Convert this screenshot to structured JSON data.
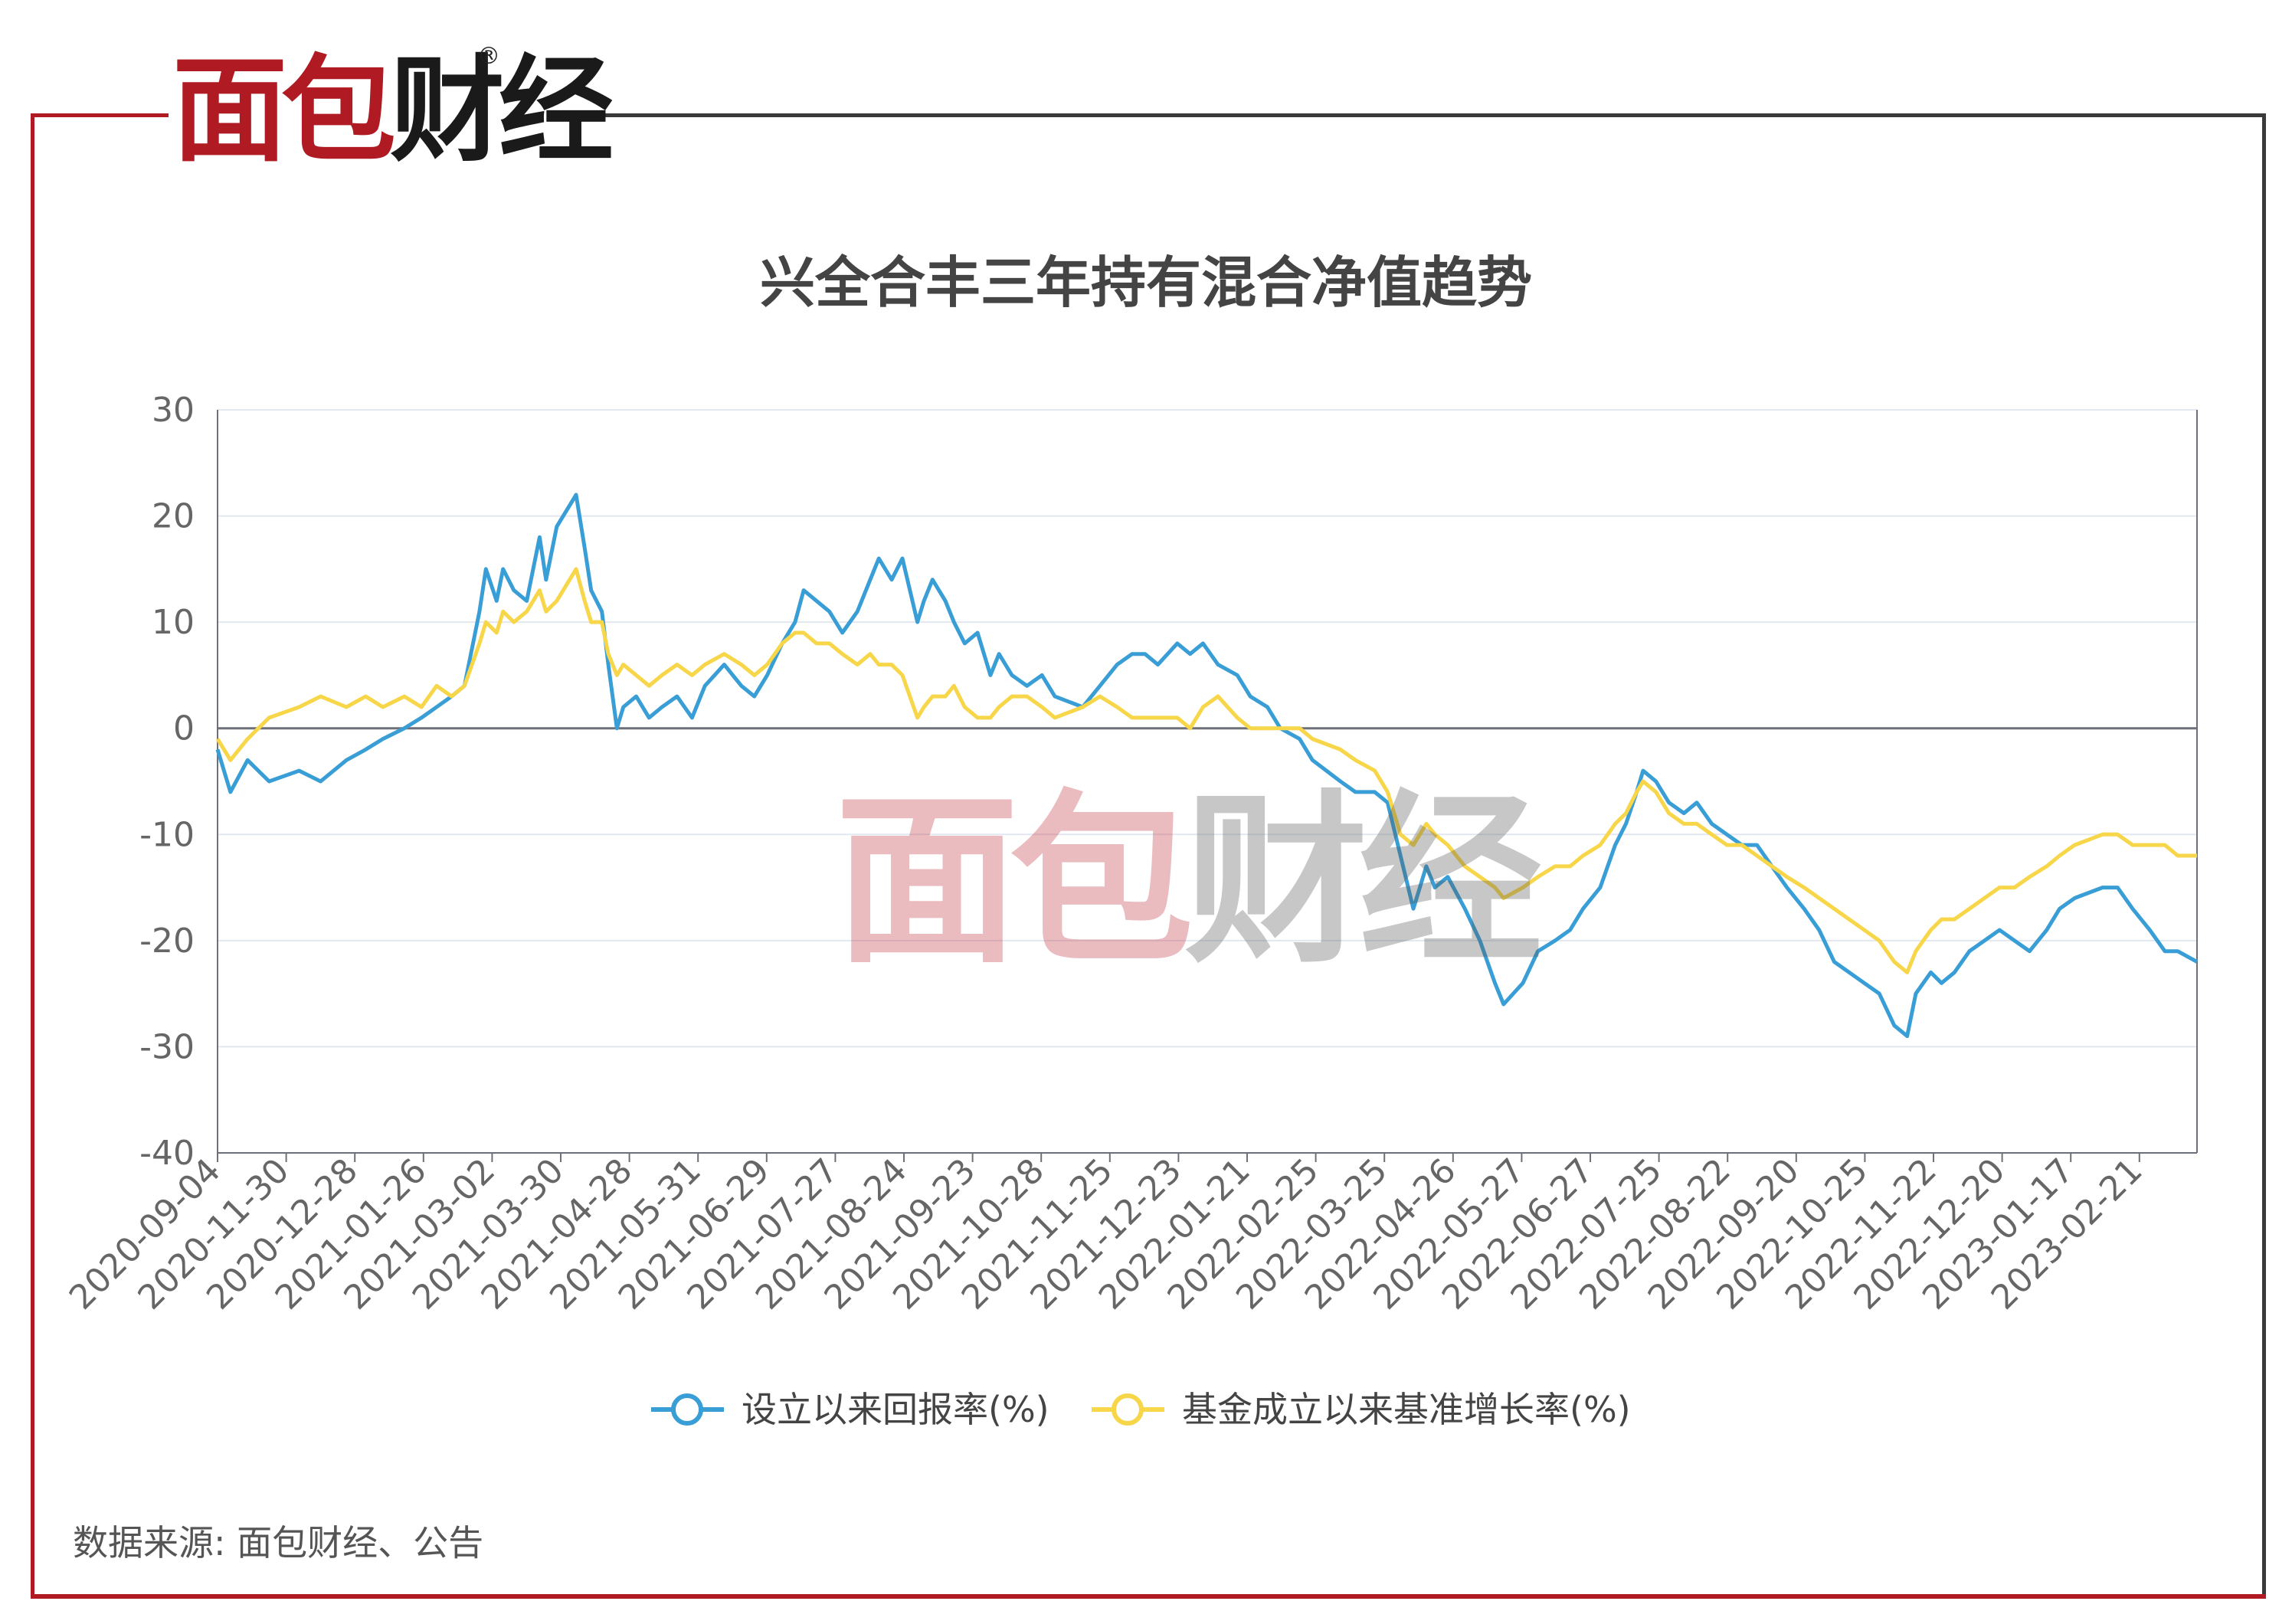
{
  "logo": {
    "text_red": "面包",
    "text_dark": "财经",
    "registered": "®"
  },
  "watermark": {
    "text_red": "面包",
    "text_dark": "财经"
  },
  "source_text": "数据来源: 面包财经、公告",
  "colors": {
    "brand_red": "#b01a22",
    "series_blue": "#3a9ed6",
    "series_yellow": "#f7d649",
    "grid": "#e3e8f0",
    "axis": "#6e7079"
  },
  "chart_data": {
    "type": "line",
    "title": "兴全合丰三年持有混合净值趋势",
    "xlabel": "",
    "ylabel": "",
    "ylim": [
      -40,
      30
    ],
    "yticks": [
      30,
      20,
      10,
      0,
      -10,
      -20,
      -30,
      -40
    ],
    "grid": true,
    "legend_position": "bottom-center",
    "x_tick_labels": [
      "2020-09-04",
      "2020-11-30",
      "2020-12-28",
      "2021-01-26",
      "2021-03-02",
      "2021-03-30",
      "2021-04-28",
      "2021-05-31",
      "2021-06-29",
      "2021-07-27",
      "2021-08-24",
      "2021-09-23",
      "2021-10-28",
      "2021-11-25",
      "2021-12-23",
      "2022-01-21",
      "2022-02-25",
      "2022-03-25",
      "2022-04-26",
      "2022-05-27",
      "2022-06-27",
      "2022-07-25",
      "2022-08-22",
      "2022-09-20",
      "2022-10-25",
      "2022-11-22",
      "2022-12-20",
      "2023-01-17",
      "2023-02-21"
    ],
    "x_range": [
      "2020-09-04",
      "2023-03-15"
    ],
    "series": [
      {
        "name": "设立以来回报率(%)",
        "color": "#3a9ed6",
        "points": [
          [
            "2020-09-04",
            -2
          ],
          [
            "2020-09-10",
            -6
          ],
          [
            "2020-09-18",
            -3
          ],
          [
            "2020-09-28",
            -5
          ],
          [
            "2020-10-12",
            -4
          ],
          [
            "2020-10-22",
            -5
          ],
          [
            "2020-11-03",
            -3
          ],
          [
            "2020-11-12",
            -2
          ],
          [
            "2020-11-20",
            -1
          ],
          [
            "2020-11-30",
            0
          ],
          [
            "2020-12-08",
            1
          ],
          [
            "2020-12-15",
            2
          ],
          [
            "2020-12-22",
            3
          ],
          [
            "2020-12-28",
            4
          ],
          [
            "2021-01-04",
            11
          ],
          [
            "2021-01-07",
            15
          ],
          [
            "2021-01-12",
            12
          ],
          [
            "2021-01-15",
            15
          ],
          [
            "2021-01-20",
            13
          ],
          [
            "2021-01-26",
            12
          ],
          [
            "2021-02-01",
            18
          ],
          [
            "2021-02-04",
            14
          ],
          [
            "2021-02-09",
            19
          ],
          [
            "2021-02-18",
            22
          ],
          [
            "2021-02-22",
            17
          ],
          [
            "2021-02-25",
            13
          ],
          [
            "2021-03-02",
            11
          ],
          [
            "2021-03-05",
            6
          ],
          [
            "2021-03-09",
            0
          ],
          [
            "2021-03-12",
            2
          ],
          [
            "2021-03-18",
            3
          ],
          [
            "2021-03-24",
            1
          ],
          [
            "2021-03-30",
            2
          ],
          [
            "2021-04-06",
            3
          ],
          [
            "2021-04-13",
            1
          ],
          [
            "2021-04-19",
            4
          ],
          [
            "2021-04-28",
            6
          ],
          [
            "2021-05-06",
            4
          ],
          [
            "2021-05-12",
            3
          ],
          [
            "2021-05-18",
            5
          ],
          [
            "2021-05-25",
            8
          ],
          [
            "2021-05-31",
            10
          ],
          [
            "2021-06-04",
            13
          ],
          [
            "2021-06-10",
            12
          ],
          [
            "2021-06-16",
            11
          ],
          [
            "2021-06-22",
            9
          ],
          [
            "2021-06-29",
            11
          ],
          [
            "2021-07-05",
            14
          ],
          [
            "2021-07-09",
            16
          ],
          [
            "2021-07-15",
            14
          ],
          [
            "2021-07-20",
            16
          ],
          [
            "2021-07-27",
            10
          ],
          [
            "2021-07-30",
            12
          ],
          [
            "2021-08-03",
            14
          ],
          [
            "2021-08-09",
            12
          ],
          [
            "2021-08-13",
            10
          ],
          [
            "2021-08-18",
            8
          ],
          [
            "2021-08-24",
            9
          ],
          [
            "2021-08-30",
            5
          ],
          [
            "2021-09-03",
            7
          ],
          [
            "2021-09-09",
            5
          ],
          [
            "2021-09-16",
            4
          ],
          [
            "2021-09-23",
            5
          ],
          [
            "2021-09-29",
            3
          ],
          [
            "2021-10-12",
            2
          ],
          [
            "2021-10-20",
            4
          ],
          [
            "2021-10-28",
            6
          ],
          [
            "2021-11-04",
            7
          ],
          [
            "2021-11-10",
            7
          ],
          [
            "2021-11-16",
            6
          ],
          [
            "2021-11-25",
            8
          ],
          [
            "2021-12-01",
            7
          ],
          [
            "2021-12-07",
            8
          ],
          [
            "2021-12-14",
            6
          ],
          [
            "2021-12-23",
            5
          ],
          [
            "2021-12-29",
            3
          ],
          [
            "2022-01-06",
            2
          ],
          [
            "2022-01-12",
            0
          ],
          [
            "2022-01-21",
            -1
          ],
          [
            "2022-01-27",
            -3
          ],
          [
            "2022-02-09",
            -5
          ],
          [
            "2022-02-16",
            -6
          ],
          [
            "2022-02-25",
            -6
          ],
          [
            "2022-03-03",
            -7
          ],
          [
            "2022-03-09",
            -12
          ],
          [
            "2022-03-15",
            -17
          ],
          [
            "2022-03-21",
            -13
          ],
          [
            "2022-03-25",
            -15
          ],
          [
            "2022-03-31",
            -14
          ],
          [
            "2022-04-08",
            -17
          ],
          [
            "2022-04-15",
            -20
          ],
          [
            "2022-04-22",
            -24
          ],
          [
            "2022-04-26",
            -26
          ],
          [
            "2022-05-05",
            -24
          ],
          [
            "2022-05-12",
            -21
          ],
          [
            "2022-05-20",
            -20
          ],
          [
            "2022-05-27",
            -19
          ],
          [
            "2022-06-02",
            -17
          ],
          [
            "2022-06-10",
            -15
          ],
          [
            "2022-06-17",
            -11
          ],
          [
            "2022-06-22",
            -9
          ],
          [
            "2022-06-27",
            -6
          ],
          [
            "2022-06-30",
            -4
          ],
          [
            "2022-07-06",
            -5
          ],
          [
            "2022-07-12",
            -7
          ],
          [
            "2022-07-19",
            -8
          ],
          [
            "2022-07-25",
            -7
          ],
          [
            "2022-08-01",
            -9
          ],
          [
            "2022-08-08",
            -10
          ],
          [
            "2022-08-15",
            -11
          ],
          [
            "2022-08-22",
            -11
          ],
          [
            "2022-08-29",
            -13
          ],
          [
            "2022-09-05",
            -15
          ],
          [
            "2022-09-13",
            -17
          ],
          [
            "2022-09-20",
            -19
          ],
          [
            "2022-09-27",
            -22
          ],
          [
            "2022-10-11",
            -24
          ],
          [
            "2022-10-18",
            -25
          ],
          [
            "2022-10-25",
            -28
          ],
          [
            "2022-10-31",
            -29
          ],
          [
            "2022-11-04",
            -25
          ],
          [
            "2022-11-11",
            -23
          ],
          [
            "2022-11-16",
            -24
          ],
          [
            "2022-11-22",
            -23
          ],
          [
            "2022-11-29",
            -21
          ],
          [
            "2022-12-06",
            -20
          ],
          [
            "2022-12-13",
            -19
          ],
          [
            "2022-12-20",
            -20
          ],
          [
            "2022-12-27",
            -21
          ],
          [
            "2023-01-04",
            -19
          ],
          [
            "2023-01-10",
            -17
          ],
          [
            "2023-01-17",
            -16
          ],
          [
            "2023-01-30",
            -15
          ],
          [
            "2023-02-06",
            -15
          ],
          [
            "2023-02-13",
            -17
          ],
          [
            "2023-02-21",
            -19
          ],
          [
            "2023-02-28",
            -21
          ],
          [
            "2023-03-06",
            -21
          ],
          [
            "2023-03-15",
            -22
          ]
        ]
      },
      {
        "name": "基金成立以来基准增长率(%)",
        "color": "#f7d649",
        "points": [
          [
            "2020-09-04",
            -1
          ],
          [
            "2020-09-10",
            -3
          ],
          [
            "2020-09-18",
            -1
          ],
          [
            "2020-09-28",
            1
          ],
          [
            "2020-10-12",
            2
          ],
          [
            "2020-10-22",
            3
          ],
          [
            "2020-11-03",
            2
          ],
          [
            "2020-11-12",
            3
          ],
          [
            "2020-11-20",
            2
          ],
          [
            "2020-11-30",
            3
          ],
          [
            "2020-12-08",
            2
          ],
          [
            "2020-12-15",
            4
          ],
          [
            "2020-12-22",
            3
          ],
          [
            "2020-12-28",
            4
          ],
          [
            "2021-01-04",
            8
          ],
          [
            "2021-01-07",
            10
          ],
          [
            "2021-01-12",
            9
          ],
          [
            "2021-01-15",
            11
          ],
          [
            "2021-01-20",
            10
          ],
          [
            "2021-01-26",
            11
          ],
          [
            "2021-02-01",
            13
          ],
          [
            "2021-02-04",
            11
          ],
          [
            "2021-02-09",
            12
          ],
          [
            "2021-02-18",
            15
          ],
          [
            "2021-02-22",
            12
          ],
          [
            "2021-02-25",
            10
          ],
          [
            "2021-03-02",
            10
          ],
          [
            "2021-03-05",
            7
          ],
          [
            "2021-03-09",
            5
          ],
          [
            "2021-03-12",
            6
          ],
          [
            "2021-03-18",
            5
          ],
          [
            "2021-03-24",
            4
          ],
          [
            "2021-03-30",
            5
          ],
          [
            "2021-04-06",
            6
          ],
          [
            "2021-04-13",
            5
          ],
          [
            "2021-04-19",
            6
          ],
          [
            "2021-04-28",
            7
          ],
          [
            "2021-05-06",
            6
          ],
          [
            "2021-05-12",
            5
          ],
          [
            "2021-05-18",
            6
          ],
          [
            "2021-05-25",
            8
          ],
          [
            "2021-05-31",
            9
          ],
          [
            "2021-06-04",
            9
          ],
          [
            "2021-06-10",
            8
          ],
          [
            "2021-06-16",
            8
          ],
          [
            "2021-06-22",
            7
          ],
          [
            "2021-06-29",
            6
          ],
          [
            "2021-07-05",
            7
          ],
          [
            "2021-07-09",
            6
          ],
          [
            "2021-07-15",
            6
          ],
          [
            "2021-07-20",
            5
          ],
          [
            "2021-07-27",
            1
          ],
          [
            "2021-07-30",
            2
          ],
          [
            "2021-08-03",
            3
          ],
          [
            "2021-08-09",
            3
          ],
          [
            "2021-08-13",
            4
          ],
          [
            "2021-08-18",
            2
          ],
          [
            "2021-08-24",
            1
          ],
          [
            "2021-08-30",
            1
          ],
          [
            "2021-09-03",
            2
          ],
          [
            "2021-09-09",
            3
          ],
          [
            "2021-09-16",
            3
          ],
          [
            "2021-09-23",
            2
          ],
          [
            "2021-09-29",
            1
          ],
          [
            "2021-10-12",
            2
          ],
          [
            "2021-10-20",
            3
          ],
          [
            "2021-10-28",
            2
          ],
          [
            "2021-11-04",
            1
          ],
          [
            "2021-11-10",
            1
          ],
          [
            "2021-11-16",
            1
          ],
          [
            "2021-11-25",
            1
          ],
          [
            "2021-12-01",
            0
          ],
          [
            "2021-12-07",
            2
          ],
          [
            "2021-12-14",
            3
          ],
          [
            "2021-12-23",
            1
          ],
          [
            "2021-12-29",
            0
          ],
          [
            "2022-01-06",
            0
          ],
          [
            "2022-01-12",
            0
          ],
          [
            "2022-01-21",
            0
          ],
          [
            "2022-01-27",
            -1
          ],
          [
            "2022-02-09",
            -2
          ],
          [
            "2022-02-16",
            -3
          ],
          [
            "2022-02-25",
            -4
          ],
          [
            "2022-03-03",
            -6
          ],
          [
            "2022-03-09",
            -10
          ],
          [
            "2022-03-15",
            -11
          ],
          [
            "2022-03-21",
            -9
          ],
          [
            "2022-03-25",
            -10
          ],
          [
            "2022-03-31",
            -11
          ],
          [
            "2022-04-08",
            -13
          ],
          [
            "2022-04-15",
            -14
          ],
          [
            "2022-04-22",
            -15
          ],
          [
            "2022-04-26",
            -16
          ],
          [
            "2022-05-05",
            -15
          ],
          [
            "2022-05-12",
            -14
          ],
          [
            "2022-05-20",
            -13
          ],
          [
            "2022-05-27",
            -13
          ],
          [
            "2022-06-02",
            -12
          ],
          [
            "2022-06-10",
            -11
          ],
          [
            "2022-06-17",
            -9
          ],
          [
            "2022-06-22",
            -8
          ],
          [
            "2022-06-27",
            -6
          ],
          [
            "2022-06-30",
            -5
          ],
          [
            "2022-07-06",
            -6
          ],
          [
            "2022-07-12",
            -8
          ],
          [
            "2022-07-19",
            -9
          ],
          [
            "2022-07-25",
            -9
          ],
          [
            "2022-08-01",
            -10
          ],
          [
            "2022-08-08",
            -11
          ],
          [
            "2022-08-15",
            -11
          ],
          [
            "2022-08-22",
            -12
          ],
          [
            "2022-08-29",
            -13
          ],
          [
            "2022-09-05",
            -14
          ],
          [
            "2022-09-13",
            -15
          ],
          [
            "2022-09-20",
            -16
          ],
          [
            "2022-09-27",
            -17
          ],
          [
            "2022-10-11",
            -19
          ],
          [
            "2022-10-18",
            -20
          ],
          [
            "2022-10-25",
            -22
          ],
          [
            "2022-10-31",
            -23
          ],
          [
            "2022-11-04",
            -21
          ],
          [
            "2022-11-11",
            -19
          ],
          [
            "2022-11-16",
            -18
          ],
          [
            "2022-11-22",
            -18
          ],
          [
            "2022-11-29",
            -17
          ],
          [
            "2022-12-06",
            -16
          ],
          [
            "2022-12-13",
            -15
          ],
          [
            "2022-12-20",
            -15
          ],
          [
            "2022-12-27",
            -14
          ],
          [
            "2023-01-04",
            -13
          ],
          [
            "2023-01-10",
            -12
          ],
          [
            "2023-01-17",
            -11
          ],
          [
            "2023-01-30",
            -10
          ],
          [
            "2023-02-06",
            -10
          ],
          [
            "2023-02-13",
            -11
          ],
          [
            "2023-02-21",
            -11
          ],
          [
            "2023-02-28",
            -11
          ],
          [
            "2023-03-06",
            -12
          ],
          [
            "2023-03-15",
            -12
          ]
        ]
      }
    ]
  }
}
